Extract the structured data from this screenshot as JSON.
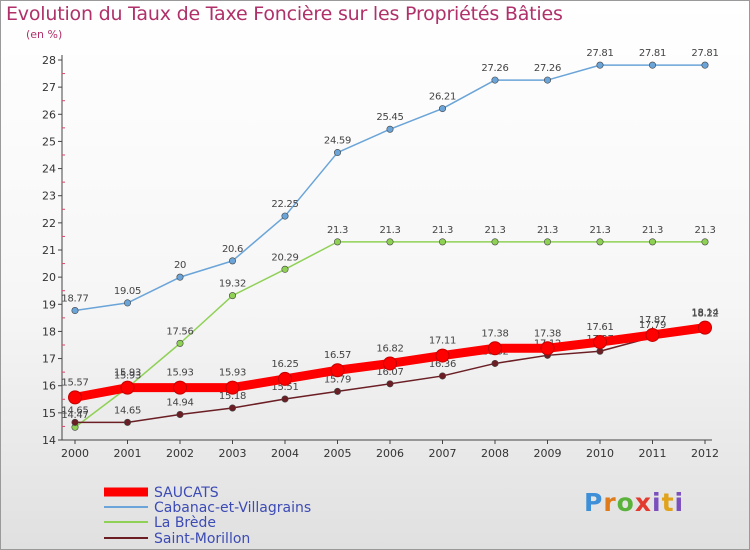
{
  "title": "Evolution du Taux de Taxe Foncière sur les Propriétés Bâties",
  "unit_label": "(en %)",
  "logo_text": "Proxiti",
  "chart_data": {
    "type": "line",
    "x": [
      "2000",
      "2001",
      "2002",
      "2003",
      "2004",
      "2005",
      "2006",
      "2007",
      "2008",
      "2009",
      "2010",
      "2011",
      "2012"
    ],
    "ylim": [
      14,
      28
    ],
    "y_ticks": [
      "14",
      "15",
      "16",
      "17",
      "18",
      "19",
      "20",
      "21",
      "22",
      "23",
      "24",
      "25",
      "26",
      "27",
      "28"
    ],
    "grid": false,
    "legend_position": "bottom-left",
    "series": [
      {
        "name": "SAUCATS",
        "color": "#ff0000",
        "line_width": "thick",
        "values": [
          15.57,
          15.93,
          15.93,
          15.93,
          16.25,
          16.57,
          16.82,
          17.11,
          17.38,
          17.38,
          17.61,
          17.87,
          18.14
        ],
        "labels": [
          "15.57",
          "15.93",
          "15.93",
          "15.93",
          "16.25",
          "16.57",
          "16.82",
          "17.11",
          "17.38",
          "17.38",
          "17.61",
          "17.87",
          "18.14"
        ]
      },
      {
        "name": "Cabanac-et-Villagrains",
        "color": "#6aa4d8",
        "line_width": "thin",
        "values": [
          18.77,
          19.05,
          20.0,
          20.6,
          22.25,
          24.59,
          25.45,
          26.21,
          27.26,
          27.26,
          27.81,
          27.81,
          27.81
        ],
        "labels": [
          "18.77",
          "19.05",
          "20",
          "20.6",
          "22.25",
          "24.59",
          "25.45",
          "26.21",
          "27.26",
          "27.26",
          "27.81",
          "27.81",
          "27.81"
        ]
      },
      {
        "name": "La Brède",
        "color": "#8fd155",
        "line_width": "thin",
        "values": [
          14.47,
          15.93,
          17.56,
          19.32,
          20.29,
          21.3,
          21.3,
          21.3,
          21.3,
          21.3,
          21.3,
          21.3,
          21.3
        ],
        "labels": [
          "14.47",
          "15.93",
          "17.56",
          "19.32",
          "20.29",
          "21.3",
          "21.3",
          "21.3",
          "21.3",
          "21.3",
          "21.3",
          "21.3",
          "21.3"
        ]
      },
      {
        "name": "Saint-Morillon",
        "color": "#6b1f25",
        "line_width": "thin",
        "values": [
          14.65,
          14.65,
          14.94,
          15.18,
          15.51,
          15.79,
          16.07,
          16.36,
          16.82,
          17.12,
          17.27,
          17.79,
          18.22
        ],
        "labels": [
          "14.65",
          "14.65",
          "14.94",
          "15.18",
          "15.51",
          "15.79",
          "16.07",
          "16.36",
          "16.82",
          "17.12",
          "17.27",
          "17.79",
          "18.22"
        ]
      }
    ]
  }
}
